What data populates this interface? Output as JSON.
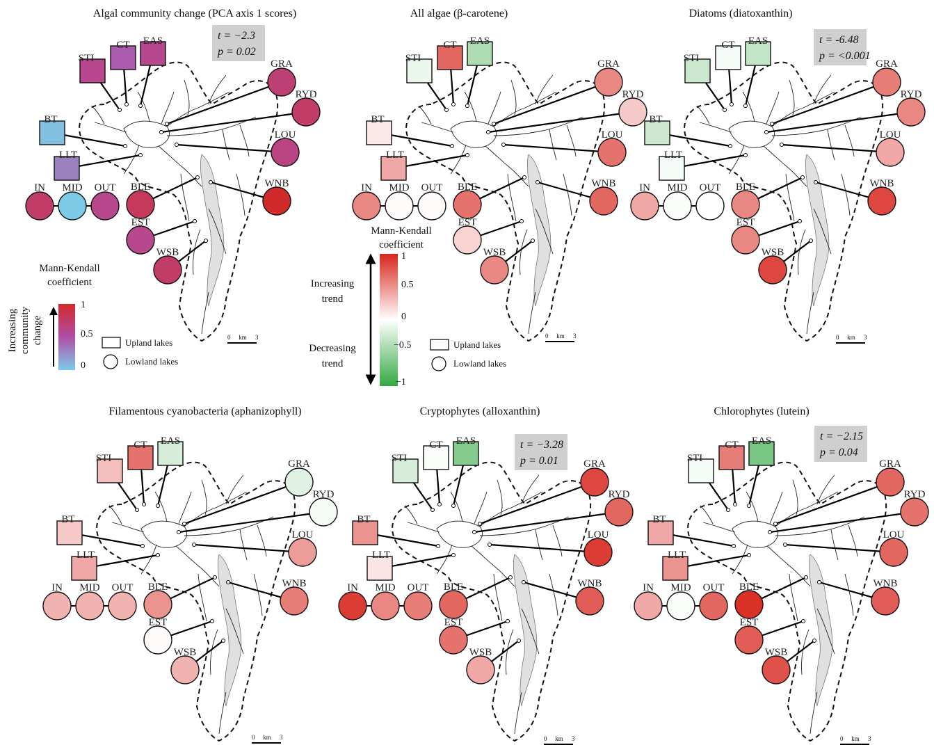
{
  "colors": {
    "decrease_strong": "#33a842",
    "neutral": "#ffffff",
    "increase_strong": "#d7261d",
    "pca_low": "#7ecbe8",
    "pca_mid": "#b04fa6",
    "pca_high": "#d12a2a",
    "stat_box": "#cfcfcf",
    "basin_fill": "#e0e0e0"
  },
  "lake_codes": [
    "STI",
    "CT",
    "EAS",
    "GRA",
    "RYD",
    "BT",
    "LOU",
    "LLT",
    "IN",
    "MID",
    "OUT",
    "BLE",
    "WNB",
    "EST",
    "WSB"
  ],
  "upland_lakes": [
    "STI",
    "CT",
    "EAS",
    "BT",
    "LLT"
  ],
  "panels": [
    {
      "title": "Algal community change (PCA axis 1 scores)",
      "colormap": "pca",
      "stat": {
        "t": "t = −2.3",
        "p": "p = 0.02"
      },
      "scale_bar": {
        "left": "0",
        "unit": "km",
        "right": "3"
      },
      "values": {
        "STI": 0.6,
        "CT": 0.45,
        "EAS": 0.6,
        "GRA": 0.7,
        "RYD": 0.75,
        "BT": 0.05,
        "LOU": 0.65,
        "LLT": 0.3,
        "IN": 0.75,
        "MID": 0.0,
        "OUT": 0.6,
        "BLE": 0.8,
        "WNB": 1.0,
        "EST": 0.6,
        "WSB": 0.75
      }
    },
    {
      "title": "All algae (β-carotene)",
      "colormap": "diverging",
      "stat": null,
      "scale_bar": {
        "left": "0",
        "unit": "km",
        "right": "3"
      },
      "values": {
        "STI": -0.1,
        "CT": 0.7,
        "EAS": -0.4,
        "GRA": 0.55,
        "RYD": 0.25,
        "BT": 0.1,
        "LOU": 0.65,
        "LLT": 0.4,
        "IN": 0.55,
        "MID": 0.02,
        "OUT": 0.02,
        "BLE": 0.65,
        "WNB": 0.7,
        "EST": 0.2,
        "WSB": 0.55
      }
    },
    {
      "title": "Diatoms (diatoxanthin)",
      "colormap": "diverging",
      "stat": {
        "t": "t = -6.48",
        "p": "p = <0.001"
      },
      "scale_bar": {
        "left": "0",
        "unit": "km",
        "right": "3"
      },
      "values": {
        "STI": -0.25,
        "CT": -0.05,
        "EAS": -0.3,
        "GRA": 0.6,
        "RYD": 0.55,
        "BT": -0.25,
        "LOU": 0.4,
        "LLT": -0.05,
        "IN": 0.4,
        "MID": -0.02,
        "OUT": 0.0,
        "BLE": 0.55,
        "WNB": 0.85,
        "EST": 0.55,
        "WSB": 0.85
      }
    },
    {
      "title": "Filamentous cyanobacteria (aphanizophyll)",
      "colormap": "diverging",
      "stat": null,
      "scale_bar": {
        "left": "0",
        "unit": "km",
        "right": "3"
      },
      "values": {
        "STI": 0.3,
        "CT": 0.65,
        "EAS": -0.2,
        "GRA": -0.15,
        "RYD": -0.05,
        "BT": 0.25,
        "LOU": 0.45,
        "LLT": 0.4,
        "IN": 0.35,
        "MID": 0.35,
        "OUT": 0.35,
        "BLE": 0.5,
        "WNB": 0.6,
        "EST": 0.02,
        "WSB": 0.35
      }
    },
    {
      "title": "Cryptophytes (alloxanthin)",
      "colormap": "diverging",
      "stat": {
        "t": "t = −3.28",
        "p": "p = 0.01"
      },
      "scale_bar": {
        "left": "0",
        "unit": "km",
        "right": "3"
      },
      "values": {
        "STI": -0.2,
        "CT": -0.02,
        "EAS": -0.6,
        "GRA": 0.85,
        "RYD": 0.7,
        "BT": 0.5,
        "LOU": 0.9,
        "LLT": 0.12,
        "IN": 0.9,
        "MID": 0.55,
        "OUT": 0.6,
        "BLE": 0.7,
        "WNB": 0.75,
        "EST": 0.65,
        "WSB": 0.4
      }
    },
    {
      "title": "Chlorophytes (lutein)",
      "colormap": "diverging",
      "stat": {
        "t": "t = −2.15",
        "p": "p = 0.04"
      },
      "scale_bar": {
        "left": "0",
        "unit": "km",
        "right": "3"
      },
      "values": {
        "STI": -0.05,
        "CT": 0.6,
        "EAS": -0.65,
        "GRA": 0.7,
        "RYD": 0.65,
        "BT": 0.4,
        "LOU": 0.7,
        "LLT": 0.5,
        "IN": 0.4,
        "MID": -0.02,
        "OUT": 0.7,
        "BLE": 0.95,
        "WNB": 0.75,
        "EST": 0.75,
        "WSB": 0.8
      }
    }
  ],
  "legend_pca": {
    "title_line1": "Mann-Kendall",
    "title_line2": "coefficient",
    "axis_line1": "Increasing",
    "axis_line2": "community",
    "axis_line3": "change",
    "ticks": [
      "1",
      "0.5",
      "0"
    ]
  },
  "legend_diverging": {
    "title_line1": "Mann-Kendall",
    "title_line2": "coefficient",
    "up_line1": "Increasing",
    "up_line2": "trend",
    "down_line1": "Decreasing",
    "down_line2": "trend",
    "ticks": [
      "1",
      "0.5",
      "0",
      "−0.5",
      "−1"
    ]
  },
  "legend_shapes": {
    "upland": "Upland lakes",
    "lowland": "Lowland lakes"
  }
}
